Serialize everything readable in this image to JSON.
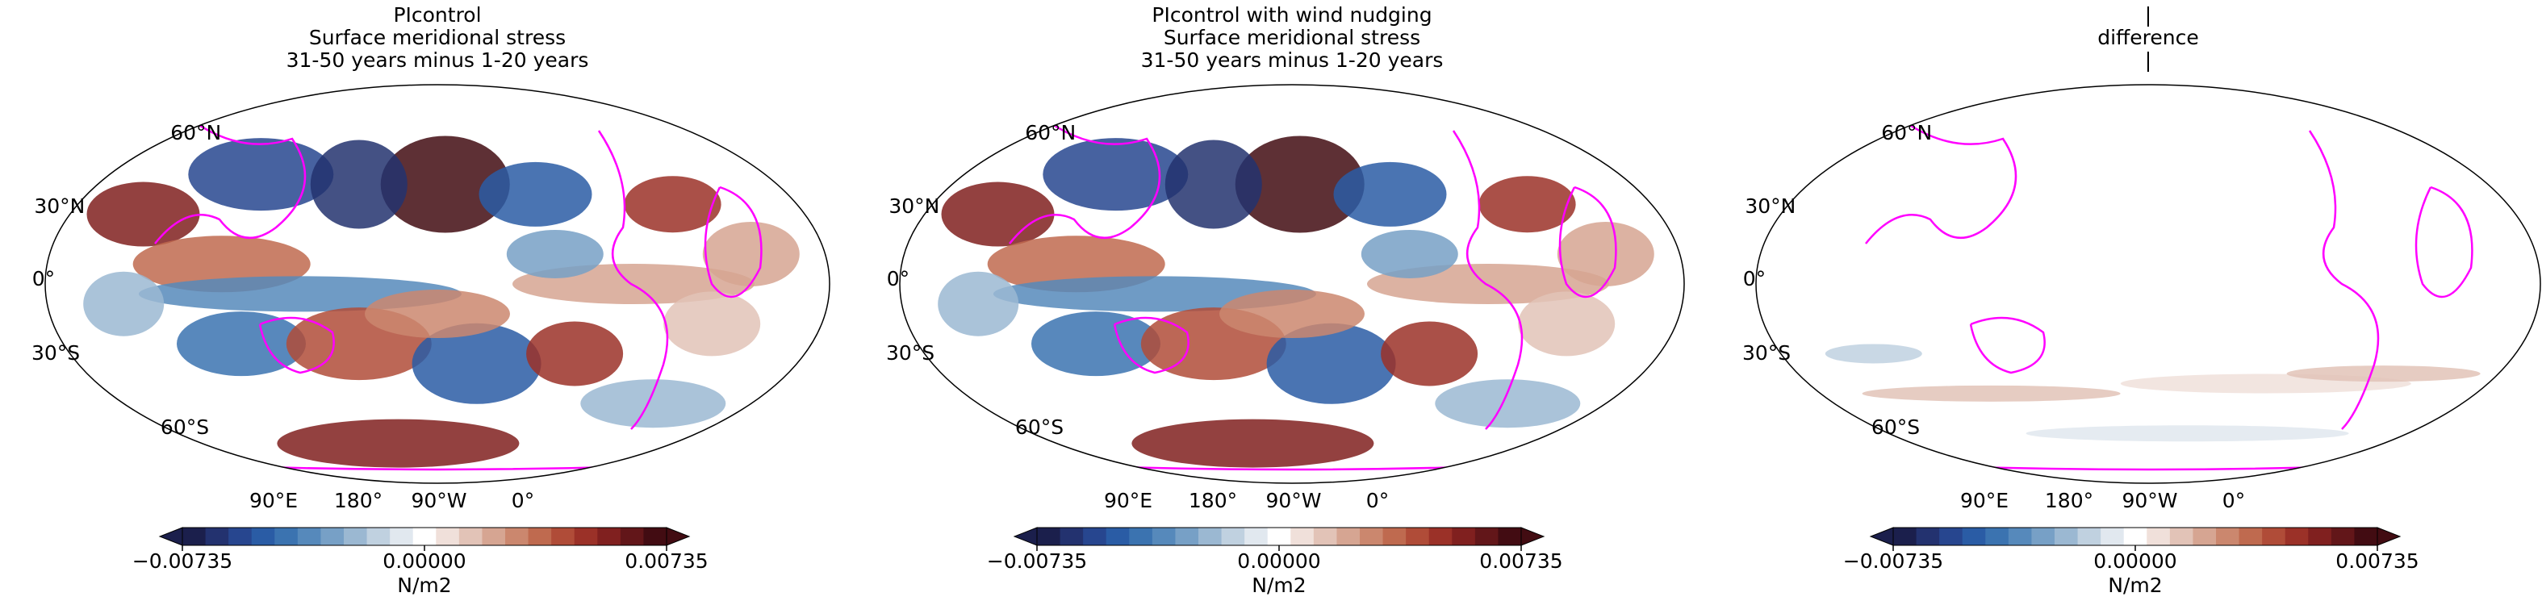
{
  "panels": [
    {
      "title": [
        "PIcontrol",
        "Surface meridional stress",
        "31-50 years minus 1-20 years"
      ]
    },
    {
      "title": [
        "PIcontrol with wind nudging",
        "Surface meridional stress",
        "31-50 years minus 1-20 years"
      ]
    },
    {
      "title": [
        "|",
        "difference",
        "|"
      ]
    }
  ],
  "map": {
    "lat_labels": [
      "60°N",
      "30°N",
      "0°",
      "30°S",
      "60°S"
    ],
    "lon_labels": [
      "90°E",
      "180°",
      "90°W",
      "0°"
    ],
    "coastline_color": "#ff00ff"
  },
  "colorbar": {
    "lim": [
      -0.00735,
      0.00735
    ],
    "ticks": [
      {
        "value": -0.00735,
        "label": "−0.00735"
      },
      {
        "value": 0,
        "label": "0.00000"
      },
      0.00735
    ],
    "label": "N/m2",
    "extend": "both",
    "colors": [
      "#1b1f4c",
      "#23326f",
      "#27468f",
      "#2a5ca5",
      "#3b73b0",
      "#5689bb",
      "#77a0c6",
      "#9bb8d2",
      "#c0d1e0",
      "#e1e8ef",
      "#ffffff",
      "#f0e0da",
      "#e2c3b7",
      "#d6a592",
      "#cb876e",
      "#bf6a4f",
      "#b04c38",
      "#9b3128",
      "#80201f",
      "#621619",
      "#420c12"
    ]
  }
}
